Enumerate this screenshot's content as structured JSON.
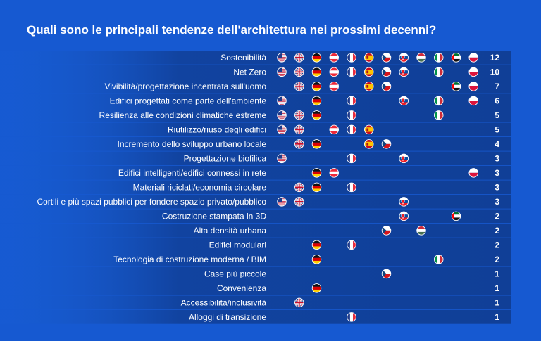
{
  "title": "Quali sono le principali tendenze dell'architettura nei prossimi decenni?",
  "colors": {
    "background": "#1659d1",
    "band_dark": "#103f97",
    "band_light": "#1a62d8",
    "text": "#ffffff"
  },
  "countries": [
    "us",
    "uk",
    "de",
    "at",
    "fr",
    "es",
    "cz",
    "sk",
    "hu",
    "it",
    "ae",
    "pl"
  ],
  "chart_data": {
    "type": "table",
    "title": "Quali sono le principali tendenze dell'architettura nei prossimi decenni?",
    "rows": [
      {
        "label": "Sostenibilità",
        "flags": [
          "us",
          "uk",
          "de",
          "at",
          "fr",
          "es",
          "cz",
          "sk",
          "hu",
          "it",
          "ae",
          "pl"
        ],
        "count": 12
      },
      {
        "label": "Net Zero",
        "flags": [
          "us",
          "uk",
          "de",
          "at",
          "fr",
          "es",
          "cz",
          "sk",
          "it",
          "pl"
        ],
        "count": 10
      },
      {
        "label": "Vivibilità/progettazione incentrata sull'uomo",
        "flags": [
          "uk",
          "de",
          "at",
          "es",
          "cz",
          "ae",
          "pl"
        ],
        "count": 7
      },
      {
        "label": "Edifici progettati come parte dell'ambiente",
        "flags": [
          "us",
          "de",
          "fr",
          "sk",
          "it",
          "pl"
        ],
        "count": 6
      },
      {
        "label": "Resilienza alle condizioni climatiche estreme",
        "flags": [
          "us",
          "uk",
          "de",
          "fr",
          "it"
        ],
        "count": 5
      },
      {
        "label": "Riutilizzo/riuso degli edifici",
        "flags": [
          "us",
          "uk",
          "at",
          "fr",
          "es"
        ],
        "count": 5
      },
      {
        "label": "Incremento dello sviluppo urbano locale",
        "flags": [
          "uk",
          "de",
          "es",
          "cz"
        ],
        "count": 4
      },
      {
        "label": "Progettazione biofilica",
        "flags": [
          "us",
          "fr",
          "sk"
        ],
        "count": 3
      },
      {
        "label": "Edifici intelligenti/edifici connessi in rete",
        "flags": [
          "de",
          "at",
          "pl"
        ],
        "count": 3
      },
      {
        "label": "Materiali riciclati/economia circolare",
        "flags": [
          "uk",
          "de",
          "fr"
        ],
        "count": 3
      },
      {
        "label": "Cortili e più spazi pubblici per fondere spazio privato/pubblico",
        "flags": [
          "us",
          "uk",
          "sk"
        ],
        "count": 3
      },
      {
        "label": "Costruzione stampata in 3D",
        "flags": [
          "sk",
          "ae"
        ],
        "count": 2
      },
      {
        "label": "Alta densità urbana",
        "flags": [
          "cz",
          "hu"
        ],
        "count": 2
      },
      {
        "label": "Edifici modulari",
        "flags": [
          "de",
          "fr"
        ],
        "count": 2
      },
      {
        "label": "Tecnologia di costruzione moderna / BIM",
        "flags": [
          "de",
          "it"
        ],
        "count": 2
      },
      {
        "label": "Case più piccole",
        "flags": [
          "cz"
        ],
        "count": 1
      },
      {
        "label": "Convenienza",
        "flags": [
          "de"
        ],
        "count": 1
      },
      {
        "label": "Accessibilità/inclusività",
        "flags": [
          "uk"
        ],
        "count": 1
      },
      {
        "label": "Alloggi di transizione",
        "flags": [
          "fr"
        ],
        "count": 1
      }
    ]
  }
}
